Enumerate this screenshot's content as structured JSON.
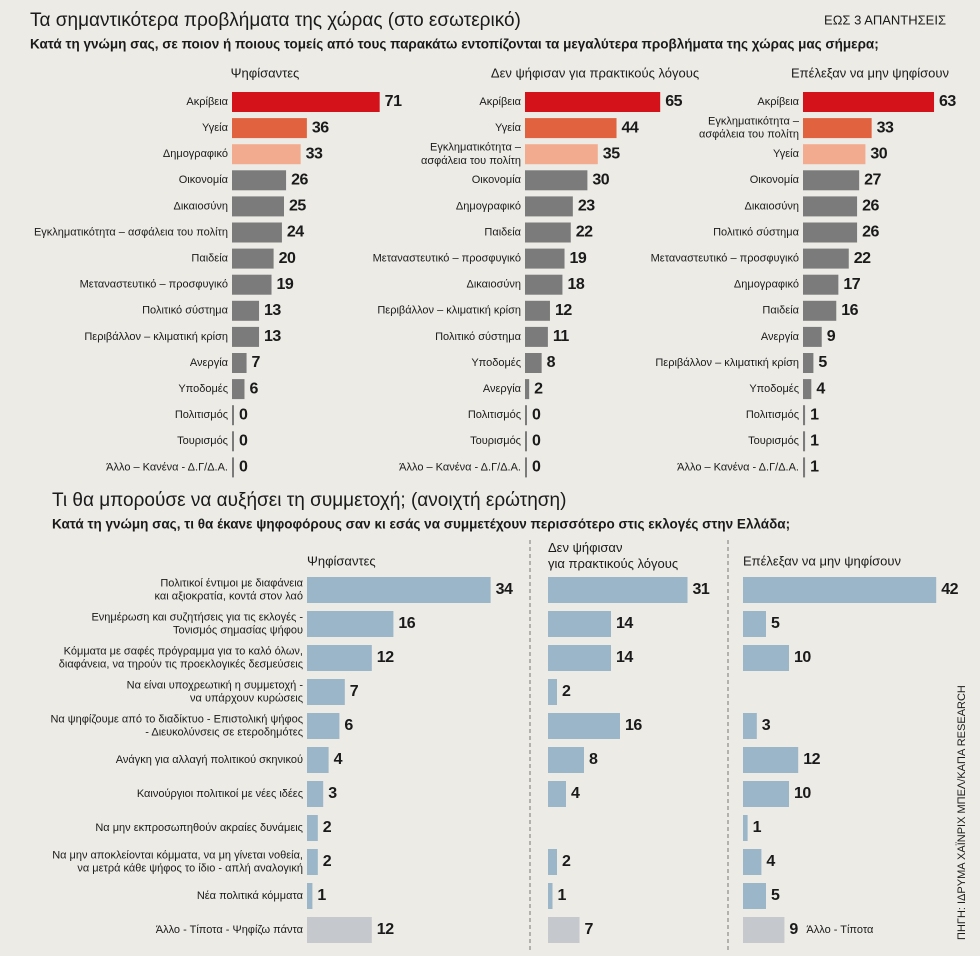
{
  "header": {
    "title": "Τα σημαντικότερα προβλήματα της χώρας (στο εσωτερικό)",
    "note": "ΕΩΣ 3 ΑΠΑΝΤΗΣΕΙΣ",
    "subtitle": "Κατά τη γνώμη σας, σε ποιον ή ποιους τομείς από τους παρακάτω εντοπίζονται τα μεγαλύτερα προβλήματα της χώρας μας σήμερα;"
  },
  "section2": {
    "title": "Τι θα μπορούσε να αυξήσει τη συμμετοχή; (ανοιχτή ερώτηση)",
    "subtitle": "Κατά τη γνώμη σας, τι θα έκανε ψηφοφόρους σαν κι εσάς να συμμετέχουν περισσότερο στις εκλογές στην Ελλάδα;"
  },
  "source": "ΠΗΓΗ: ΙΔΡΥΜΑ ΧΑΪΝΡΙΧ ΜΠΕΛ/ΚΑΠΑ RESEARCH",
  "chart_data": [
    {
      "type": "bar",
      "title": "Ψηφίσαντες",
      "categories": [
        "Ακρίβεια",
        "Υγεία",
        "Δημογραφικό",
        "Οικονομία",
        "Δικαιοσύνη",
        "Εγκληματικότητα – ασφάλεια του πολίτη",
        "Παιδεία",
        "Μεταναστευτικό – προσφυγικό",
        "Πολιτικό σύστημα",
        "Περιβάλλον – κλιματική κρίση",
        "Ανεργία",
        "Υποδομές",
        "Πολιτισμός",
        "Τουρισμός",
        "Άλλο – Κανένα - Δ.Γ/Δ.Α."
      ],
      "values": [
        71,
        36,
        33,
        26,
        25,
        24,
        20,
        19,
        13,
        13,
        7,
        6,
        0,
        0,
        0
      ],
      "colors": [
        "#d3121a",
        "#e0623f",
        "#f3ab8f",
        "#7b7b7b",
        "#7b7b7b",
        "#7b7b7b",
        "#7b7b7b",
        "#7b7b7b",
        "#7b7b7b",
        "#7b7b7b",
        "#7b7b7b",
        "#7b7b7b",
        "#7b7b7b",
        "#7b7b7b",
        "#7b7b7b"
      ]
    },
    {
      "type": "bar",
      "title": "Δεν ψήφισαν για πρακτικούς λόγους",
      "categories": [
        "Ακρίβεια",
        "Υγεία",
        "Εγκληματικότητα –\nασφάλεια του πολίτη",
        "Οικονομία",
        "Δημογραφικό",
        "Παιδεία",
        "Μεταναστευτικό – προσφυγικό",
        "Δικαιοσύνη",
        "Περιβάλλον – κλιματική κρίση",
        "Πολιτικό σύστημα",
        "Υποδομές",
        "Ανεργία",
        "Πολιτισμός",
        "Τουρισμός",
        "Άλλο – Κανένα - Δ.Γ/Δ.Α."
      ],
      "values": [
        65,
        44,
        35,
        30,
        23,
        22,
        19,
        18,
        12,
        11,
        8,
        2,
        0,
        0,
        0
      ],
      "colors": [
        "#d3121a",
        "#e0623f",
        "#f3ab8f",
        "#7b7b7b",
        "#7b7b7b",
        "#7b7b7b",
        "#7b7b7b",
        "#7b7b7b",
        "#7b7b7b",
        "#7b7b7b",
        "#7b7b7b",
        "#7b7b7b",
        "#7b7b7b",
        "#7b7b7b",
        "#7b7b7b"
      ]
    },
    {
      "type": "bar",
      "title": "Επέλεξαν να  μην ψηφίσουν",
      "categories": [
        "Ακρίβεια",
        "Εγκληματικότητα –\nασφάλεια του πολίτη",
        "Υγεία",
        "Οικονομία",
        "Δικαιοσύνη",
        "Πολιτικό σύστημα",
        "Μεταναστευτικό – προσφυγικό",
        "Δημογραφικό",
        "Παιδεία",
        "Ανεργία",
        "Περιβάλλον – κλιματική κρίση",
        "Υποδομές",
        "Πολιτισμός",
        "Τουρισμός",
        "Άλλο – Κανένα - Δ.Γ/Δ.Α."
      ],
      "values": [
        63,
        33,
        30,
        27,
        26,
        26,
        22,
        17,
        16,
        9,
        5,
        4,
        1,
        1,
        1
      ],
      "colors": [
        "#d3121a",
        "#e0623f",
        "#f3ab8f",
        "#7b7b7b",
        "#7b7b7b",
        "#7b7b7b",
        "#7b7b7b",
        "#7b7b7b",
        "#7b7b7b",
        "#7b7b7b",
        "#7b7b7b",
        "#7b7b7b",
        "#7b7b7b",
        "#7b7b7b",
        "#7b7b7b"
      ]
    },
    {
      "type": "bar",
      "title": "Ψηφίσαντες",
      "categories": [
        "Πολιτικοί έντιμοι με διαφάνεια\nκαι αξιοκρατία, κοντά στον λαό",
        "Ενημέρωση και συζητήσεις για τις εκλογές -\nΤονισμός σημασίας ψήφου",
        "Κόμματα με σαφές πρόγραμμα για το καλό όλων,\nδιαφάνεια, να τηρούν τις προεκλογικές δεσμεύσεις",
        "Να είναι υποχρεωτική η συμμετοχή -\nνα υπάρχουν κυρώσεις",
        "Να ψηφίζουμε από το διαδίκτυο - Επιστολική ψήφος\n- Διευκολύνσεις σε ετεροδημότες",
        "Ανάγκη για αλλαγή πολιτικού σκηνικού",
        "Καινούργιοι πολιτικοί με νέες ιδέες",
        "Να μην εκπροσωπηθούν ακραίες δυνάμεις",
        "Να μην αποκλείονται κόμματα, να μη γίνεται νοθεία,\nνα μετρά κάθε ψήφος το ίδιο - απλή αναλογική",
        "Νέα πολιτικά κόμματα",
        "Άλλο - Τίποτα - Ψηφίζω πάντα"
      ],
      "values": [
        34,
        16,
        12,
        7,
        6,
        4,
        3,
        2,
        2,
        1,
        12
      ],
      "colors": [
        "#9bb6c9",
        "#9bb6c9",
        "#9bb6c9",
        "#9bb6c9",
        "#9bb6c9",
        "#9bb6c9",
        "#9bb6c9",
        "#9bb6c9",
        "#9bb6c9",
        "#9bb6c9",
        "#c5c8cc"
      ]
    },
    {
      "type": "bar",
      "title": "Δεν ψήφισαν\nγια πρακτικούς λόγους",
      "values": [
        31,
        14,
        14,
        2,
        16,
        8,
        4,
        null,
        2,
        1,
        7
      ],
      "colors": [
        "#9bb6c9",
        "#9bb6c9",
        "#9bb6c9",
        "#9bb6c9",
        "#9bb6c9",
        "#9bb6c9",
        "#9bb6c9",
        "#9bb6c9",
        "#9bb6c9",
        "#9bb6c9",
        "#c5c8cc"
      ]
    },
    {
      "type": "bar",
      "title": "Επέλεξαν να μην ψηφίσουν",
      "categories": [
        null,
        null,
        null,
        null,
        null,
        null,
        null,
        null,
        null,
        null,
        "Άλλο - Τίποτα"
      ],
      "values": [
        42,
        5,
        10,
        null,
        3,
        12,
        10,
        1,
        4,
        5,
        9
      ],
      "colors": [
        "#9bb6c9",
        "#9bb6c9",
        "#9bb6c9",
        "#9bb6c9",
        "#9bb6c9",
        "#9bb6c9",
        "#9bb6c9",
        "#9bb6c9",
        "#9bb6c9",
        "#9bb6c9",
        "#c5c8cc"
      ]
    }
  ]
}
